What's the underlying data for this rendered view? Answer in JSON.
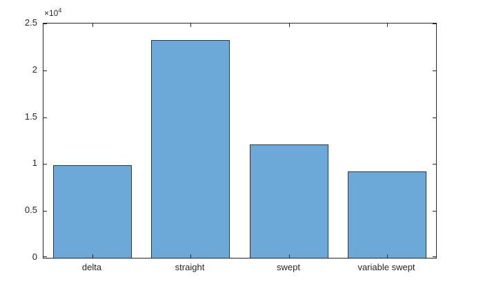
{
  "chart_data": {
    "type": "bar",
    "categories": [
      "delta",
      "straight",
      "swept",
      "variable swept"
    ],
    "values": [
      9900,
      23200,
      12100,
      9200
    ],
    "title": "",
    "xlabel": "",
    "ylabel": "",
    "ylim": [
      0,
      25000
    ],
    "yticks": [
      0,
      5000,
      10000,
      15000,
      20000,
      25000
    ],
    "ytick_labels": [
      "0",
      "0.5",
      "1",
      "1.5",
      "2",
      "2.5"
    ],
    "exponent_base": "×10",
    "exponent_power": "4",
    "grid": false,
    "legend_position": "none",
    "bar_width_fraction": 0.8,
    "colors": {
      "bar_face": "#6CA8D8",
      "bar_edge": "#223A52",
      "axis": "#262626",
      "background": "#ffffff"
    }
  }
}
